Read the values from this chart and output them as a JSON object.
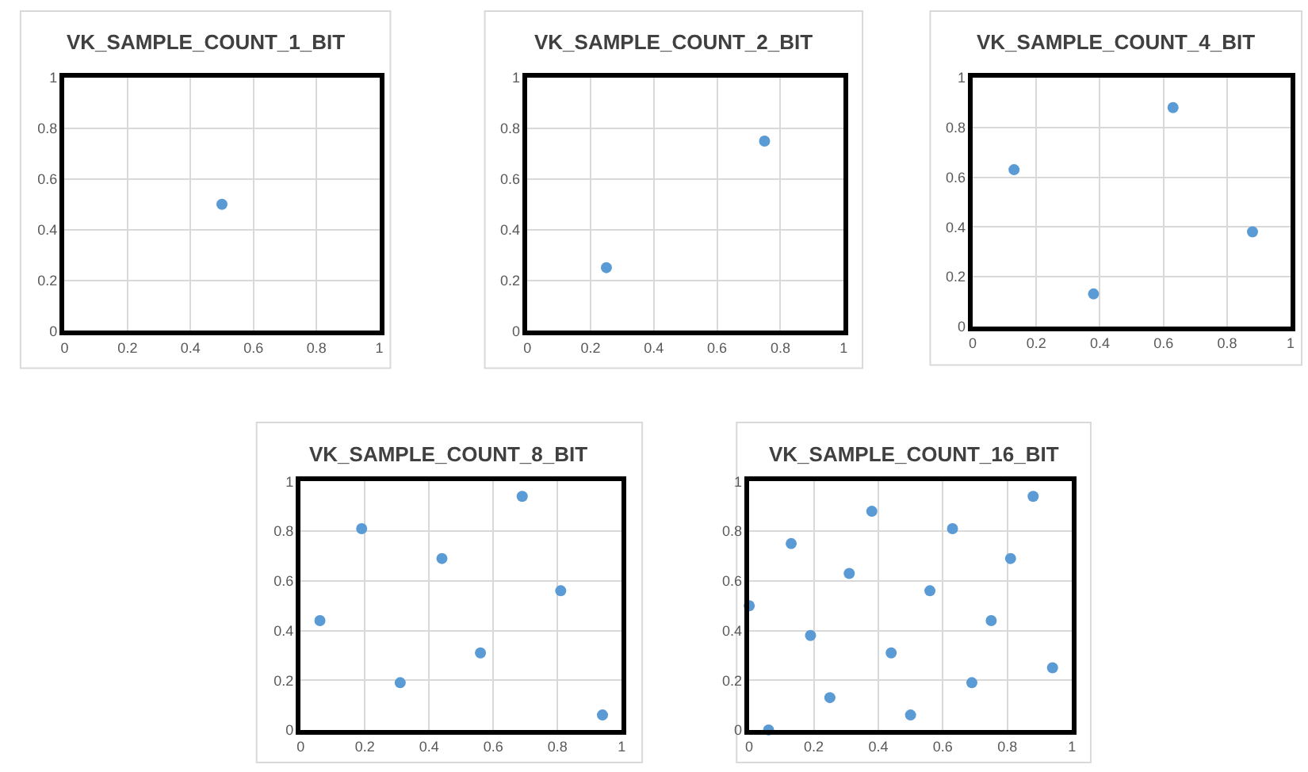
{
  "chart_data": [
    {
      "type": "scatter",
      "title": "VK_SAMPLE_COUNT_1_BIT",
      "x": [
        0.5
      ],
      "values": [
        0.5
      ],
      "color": "#5b9bd5",
      "xlim": [
        0,
        1
      ],
      "ylim": [
        0,
        1
      ],
      "xticks": [
        0,
        0.2,
        0.4,
        0.6,
        0.8,
        1
      ],
      "yticks": [
        0,
        0.2,
        0.4,
        0.6,
        0.8,
        1
      ],
      "grid": true,
      "marker": "circle"
    },
    {
      "type": "scatter",
      "title": "VK_SAMPLE_COUNT_2_BIT",
      "x": [
        0.75,
        0.25
      ],
      "values": [
        0.75,
        0.25
      ],
      "color": "#5b9bd5",
      "xlim": [
        0,
        1
      ],
      "ylim": [
        0,
        1
      ],
      "xticks": [
        0,
        0.2,
        0.4,
        0.6,
        0.8,
        1
      ],
      "yticks": [
        0,
        0.2,
        0.4,
        0.6,
        0.8,
        1
      ],
      "grid": true,
      "marker": "circle"
    },
    {
      "type": "scatter",
      "title": "VK_SAMPLE_COUNT_4_BIT",
      "x": [
        0.38,
        0.88,
        0.13,
        0.63
      ],
      "values": [
        0.13,
        0.38,
        0.63,
        0.88
      ],
      "color": "#5b9bd5",
      "xlim": [
        0,
        1
      ],
      "ylim": [
        0,
        1
      ],
      "xticks": [
        0,
        0.2,
        0.4,
        0.6,
        0.8,
        1
      ],
      "yticks": [
        0,
        0.2,
        0.4,
        0.6,
        0.8,
        1
      ],
      "grid": true,
      "marker": "circle"
    },
    {
      "type": "scatter",
      "title": "VK_SAMPLE_COUNT_8_BIT",
      "x": [
        0.56,
        0.44,
        0.81,
        0.31,
        0.19,
        0.06,
        0.69,
        0.94
      ],
      "values": [
        0.31,
        0.69,
        0.56,
        0.19,
        0.81,
        0.44,
        0.94,
        0.06
      ],
      "color": "#5b9bd5",
      "xlim": [
        0,
        1
      ],
      "ylim": [
        0,
        1
      ],
      "xticks": [
        0,
        0.2,
        0.4,
        0.6,
        0.8,
        1
      ],
      "yticks": [
        0,
        0.2,
        0.4,
        0.6,
        0.8,
        1
      ],
      "grid": true,
      "marker": "circle"
    },
    {
      "type": "scatter",
      "title": "VK_SAMPLE_COUNT_16_BIT",
      "x": [
        0.56,
        0.44,
        0.31,
        0.75,
        0.19,
        0.63,
        0.81,
        0.69,
        0.38,
        0.5,
        0.25,
        0.13,
        0,
        0.94,
        0.88,
        0.06
      ],
      "values": [
        0.56,
        0.31,
        0.63,
        0.44,
        0.38,
        0.81,
        0.69,
        0.19,
        0.88,
        0.06,
        0.13,
        0.75,
        0.5,
        0.25,
        0.94,
        0
      ],
      "color": "#5b9bd5",
      "xlim": [
        0,
        1
      ],
      "ylim": [
        0,
        1
      ],
      "xticks": [
        0,
        0.2,
        0.4,
        0.6,
        0.8,
        1
      ],
      "yticks": [
        0,
        0.2,
        0.4,
        0.6,
        0.8,
        1
      ],
      "grid": true,
      "marker": "circle"
    }
  ]
}
